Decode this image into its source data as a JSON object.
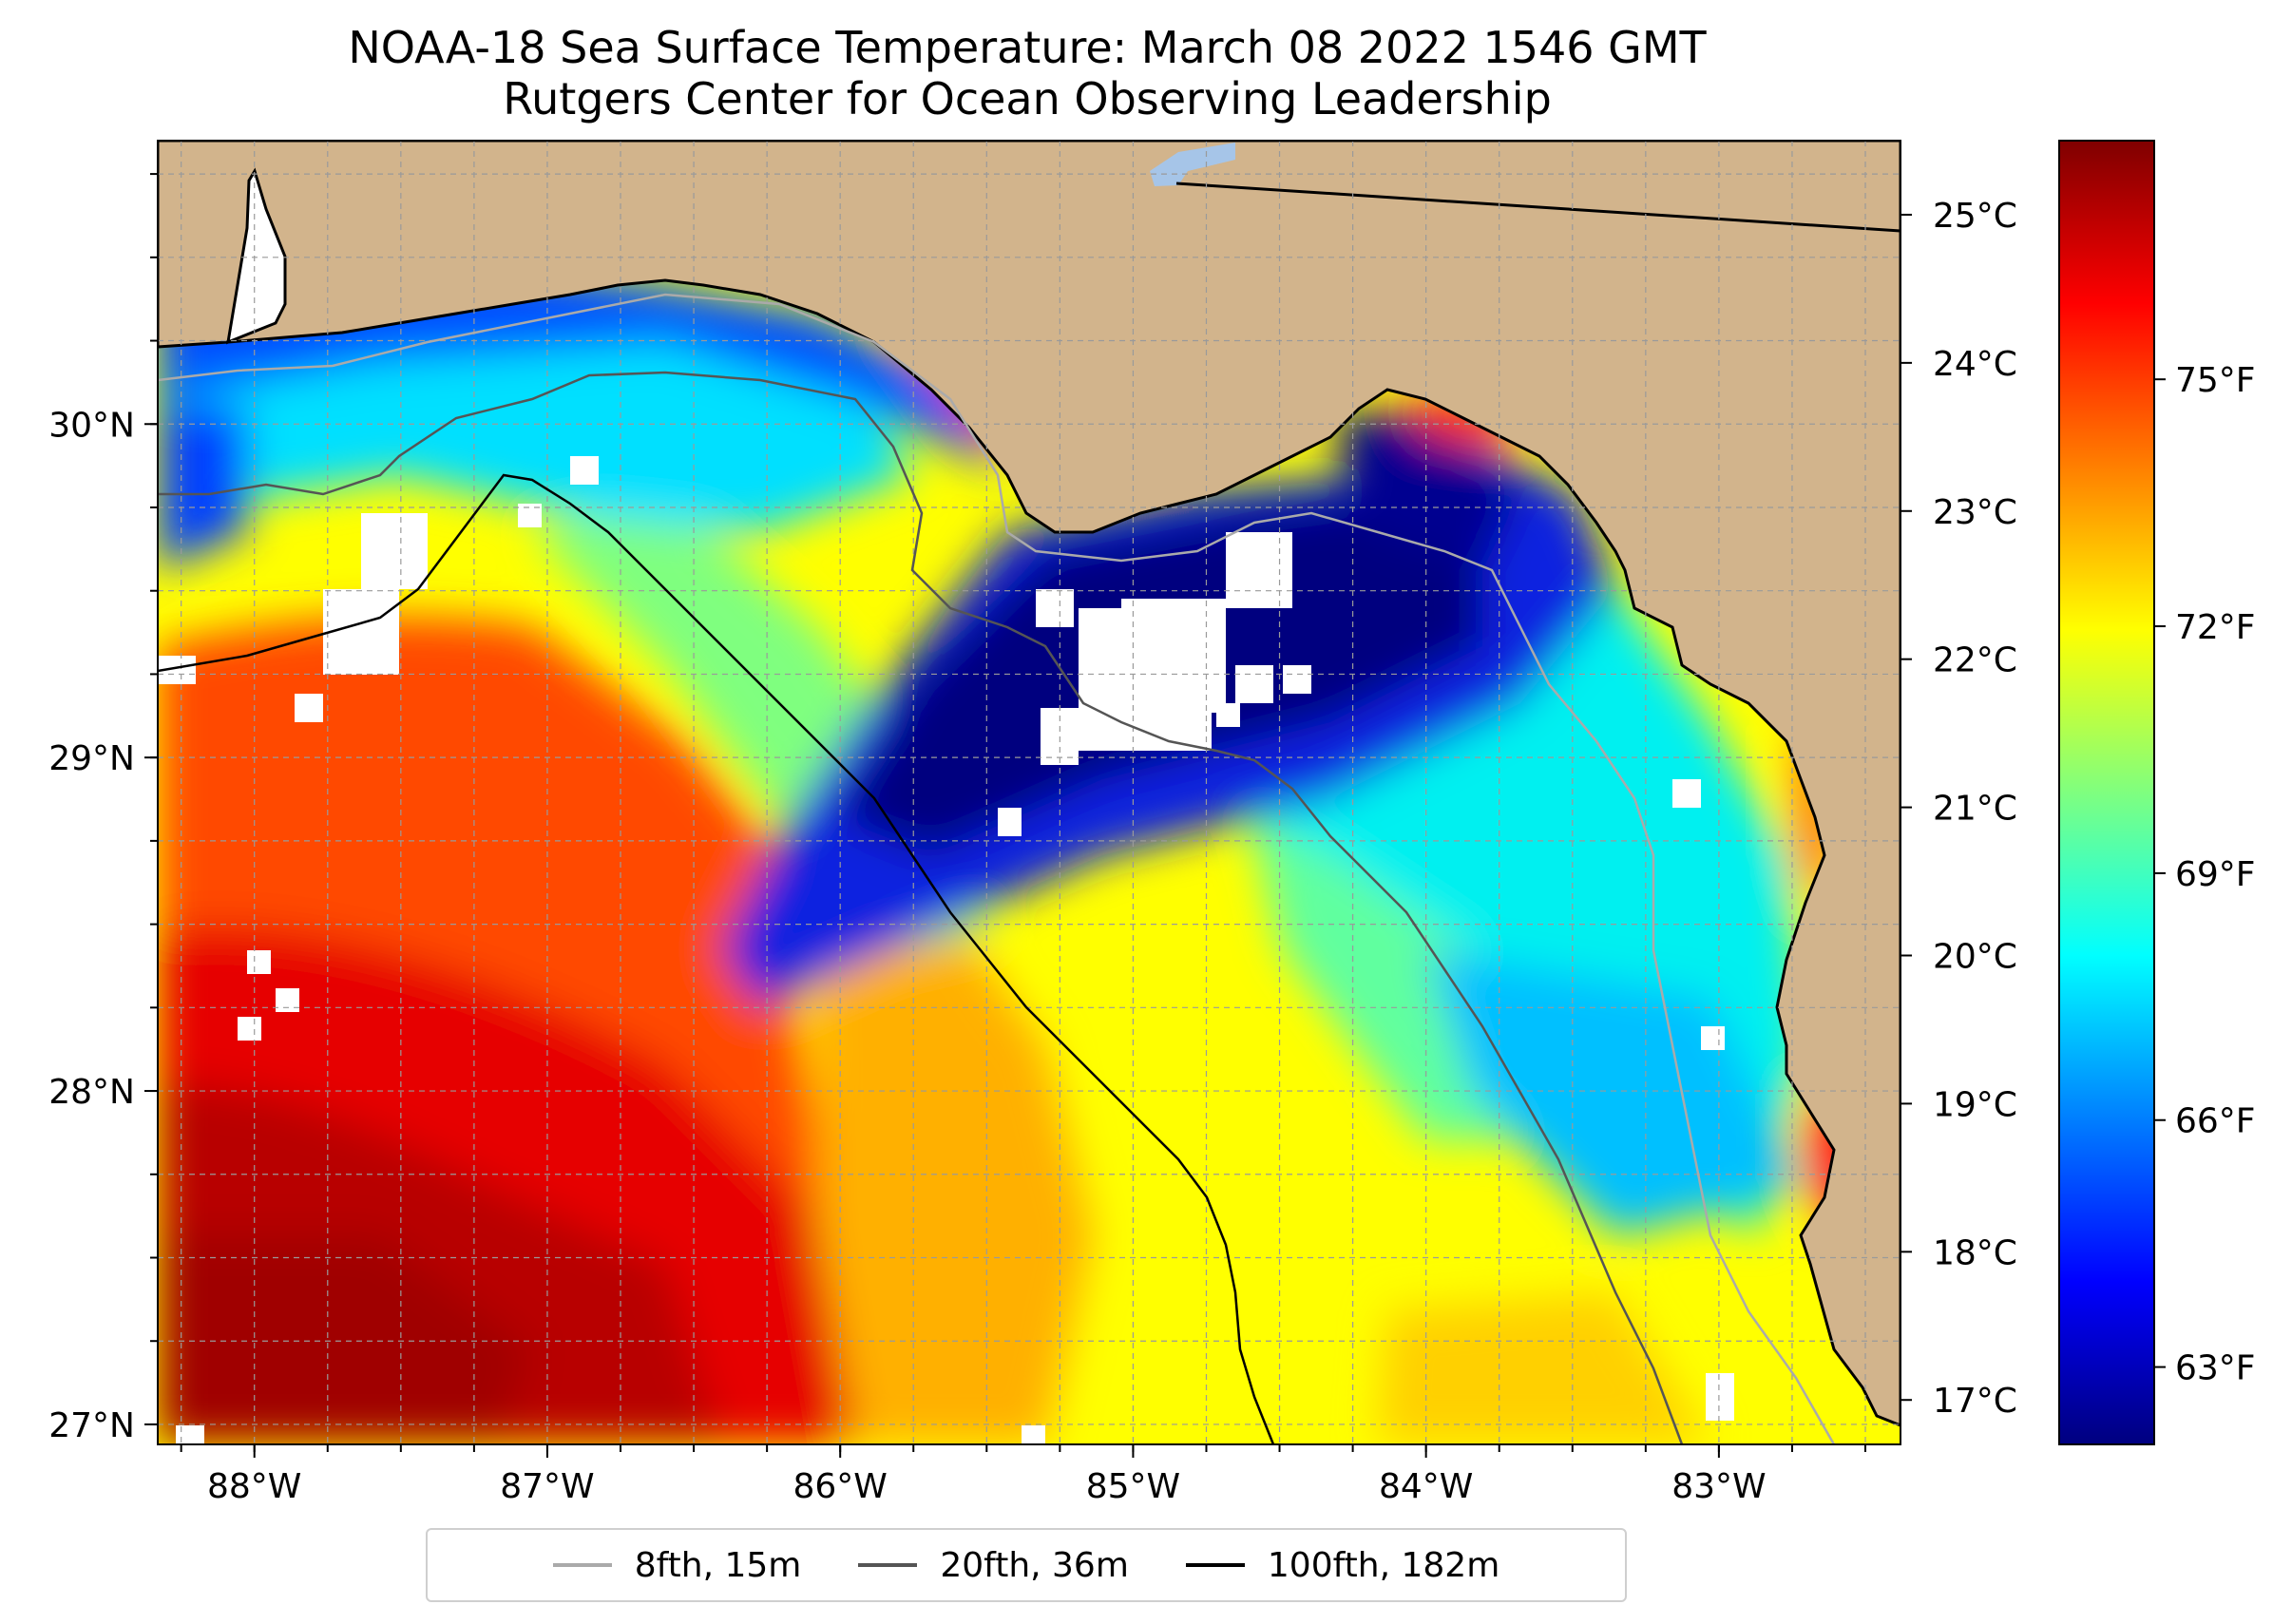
{
  "title": "NOAA-18 Sea Surface Temperature: March 08 2022 1546 GMT",
  "subtitle": "Rutgers Center for Ocean Observing Leadership",
  "colors": {
    "land": "#d2b48c",
    "gridline": "#9a9a9a",
    "colormap": [
      "#00007f",
      "#0000ff",
      "#007fff",
      "#00ffff",
      "#7fff7f",
      "#ffff00",
      "#ff7f00",
      "#ff0000",
      "#7f0000"
    ]
  },
  "map": {
    "lon_range": [
      -88.33,
      -82.38
    ],
    "lat_range": [
      26.94,
      30.85
    ],
    "lon_ticks": [
      {
        "lon": -88,
        "label": "88°W"
      },
      {
        "lon": -87,
        "label": "87°W"
      },
      {
        "lon": -86,
        "label": "86°W"
      },
      {
        "lon": -85,
        "label": "85°W"
      },
      {
        "lon": -84,
        "label": "84°W"
      },
      {
        "lon": -83,
        "label": "83°W"
      }
    ],
    "lat_ticks": [
      {
        "lat": 30,
        "label": "30°N"
      },
      {
        "lat": 29,
        "label": "29°N"
      },
      {
        "lat": 28,
        "label": "28°N"
      },
      {
        "lat": 27,
        "label": "27°N"
      }
    ]
  },
  "colorbar": {
    "celsius_range": [
      16.7,
      25.5
    ],
    "celsius_ticks": [
      {
        "value": 25,
        "label": "25°C"
      },
      {
        "value": 24,
        "label": "24°C"
      },
      {
        "value": 23,
        "label": "23°C"
      },
      {
        "value": 22,
        "label": "22°C"
      },
      {
        "value": 21,
        "label": "21°C"
      },
      {
        "value": 20,
        "label": "20°C"
      },
      {
        "value": 19,
        "label": "19°C"
      },
      {
        "value": 18,
        "label": "18°C"
      },
      {
        "value": 17,
        "label": "17°C"
      }
    ],
    "fahrenheit_ticks": [
      {
        "value": 75,
        "label": "75°F"
      },
      {
        "value": 72,
        "label": "72°F"
      },
      {
        "value": 69,
        "label": "69°F"
      },
      {
        "value": 66,
        "label": "66°F"
      },
      {
        "value": 63,
        "label": "63°F"
      }
    ]
  },
  "legend": {
    "items": [
      {
        "label": "8fth, 15m",
        "color": "#aaaaaa"
      },
      {
        "label": "20fth, 36m",
        "color": "#555555"
      },
      {
        "label": "100fth, 182m",
        "color": "#000000"
      }
    ]
  }
}
